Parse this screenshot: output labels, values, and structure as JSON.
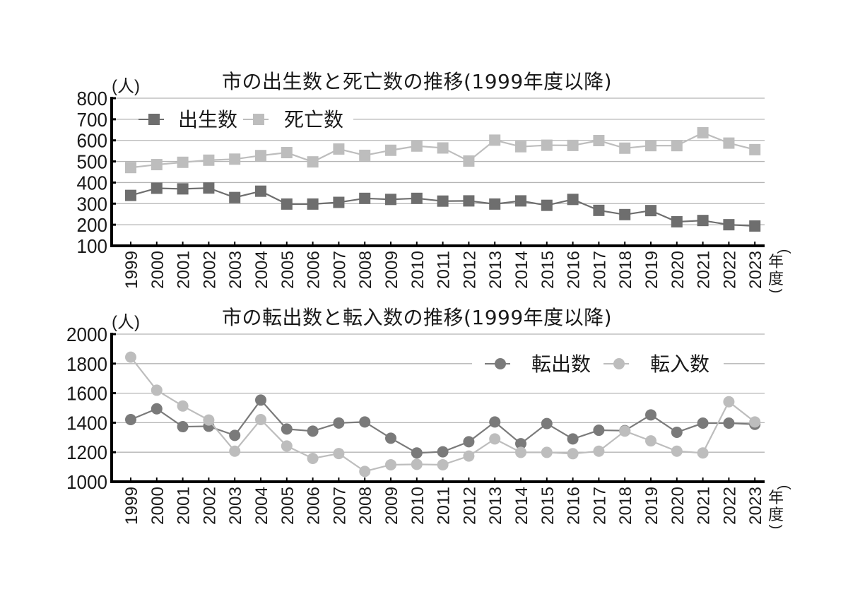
{
  "chart_data": [
    {
      "type": "line",
      "title": "市の出生数と死亡数の推移(1999年度以降)",
      "xlabel": "(年度)",
      "ylabel": "(人)",
      "ylim": [
        100,
        800
      ],
      "yticks": [
        100,
        200,
        300,
        400,
        500,
        600,
        700,
        800
      ],
      "grid": true,
      "legend_position": "top-left inside",
      "marker": "square",
      "categories": [
        "1999",
        "2000",
        "2001",
        "2002",
        "2003",
        "2004",
        "2005",
        "2006",
        "2007",
        "2008",
        "2009",
        "2010",
        "2011",
        "2012",
        "2013",
        "2014",
        "2015",
        "2016",
        "2017",
        "2018",
        "2019",
        "2020",
        "2021",
        "2022",
        "2023"
      ],
      "series": [
        {
          "name": "出生数",
          "color": "#6e6e6e",
          "values": [
            339,
            373,
            370,
            374,
            329,
            359,
            298,
            298,
            306,
            325,
            320,
            325,
            312,
            313,
            298,
            313,
            292,
            320,
            268,
            248,
            267,
            214,
            220,
            200,
            194
          ]
        },
        {
          "name": "死亡数",
          "color": "#bdbdbd",
          "values": [
            471,
            485,
            496,
            506,
            511,
            528,
            542,
            498,
            559,
            529,
            553,
            573,
            564,
            502,
            601,
            570,
            577,
            576,
            599,
            563,
            575,
            575,
            636,
            587,
            556
          ]
        }
      ]
    },
    {
      "type": "line",
      "title": "市の転出数と転入数の推移(1999年度以降)",
      "xlabel": "(年度)",
      "ylabel": "(人)",
      "ylim": [
        1000,
        2000
      ],
      "yticks": [
        1000,
        1200,
        1400,
        1600,
        1800,
        2000
      ],
      "grid": true,
      "legend_position": "top-right inside",
      "marker": "circle",
      "categories": [
        "1999",
        "2000",
        "2001",
        "2002",
        "2003",
        "2004",
        "2005",
        "2006",
        "2007",
        "2008",
        "2009",
        "2010",
        "2011",
        "2012",
        "2013",
        "2014",
        "2015",
        "2016",
        "2017",
        "2018",
        "2019",
        "2020",
        "2021",
        "2022",
        "2023"
      ],
      "series": [
        {
          "name": "転出数",
          "color": "#7a7a7a",
          "values": [
            1421,
            1494,
            1373,
            1376,
            1314,
            1553,
            1357,
            1343,
            1398,
            1405,
            1295,
            1195,
            1203,
            1271,
            1405,
            1258,
            1394,
            1290,
            1349,
            1346,
            1453,
            1335,
            1397,
            1397,
            1389
          ]
        },
        {
          "name": "転入数",
          "color": "#bdbdbd",
          "values": [
            1844,
            1620,
            1513,
            1418,
            1207,
            1421,
            1242,
            1158,
            1191,
            1070,
            1115,
            1118,
            1115,
            1174,
            1290,
            1199,
            1199,
            1190,
            1207,
            1343,
            1277,
            1207,
            1195,
            1542,
            1405
          ]
        }
      ]
    }
  ],
  "charts": {
    "top": {
      "title": "市の出生数と死亡数の推移(1999年度以降)",
      "unit": "(人)",
      "x_unit_open": "(",
      "x_unit_1": "年",
      "x_unit_2": "度",
      "x_unit_close": ")"
    },
    "bottom": {
      "title": "市の転出数と転入数の推移(1999年度以降)",
      "unit": "(人)",
      "x_unit_open": "(",
      "x_unit_1": "年",
      "x_unit_2": "度",
      "x_unit_close": ")"
    }
  }
}
